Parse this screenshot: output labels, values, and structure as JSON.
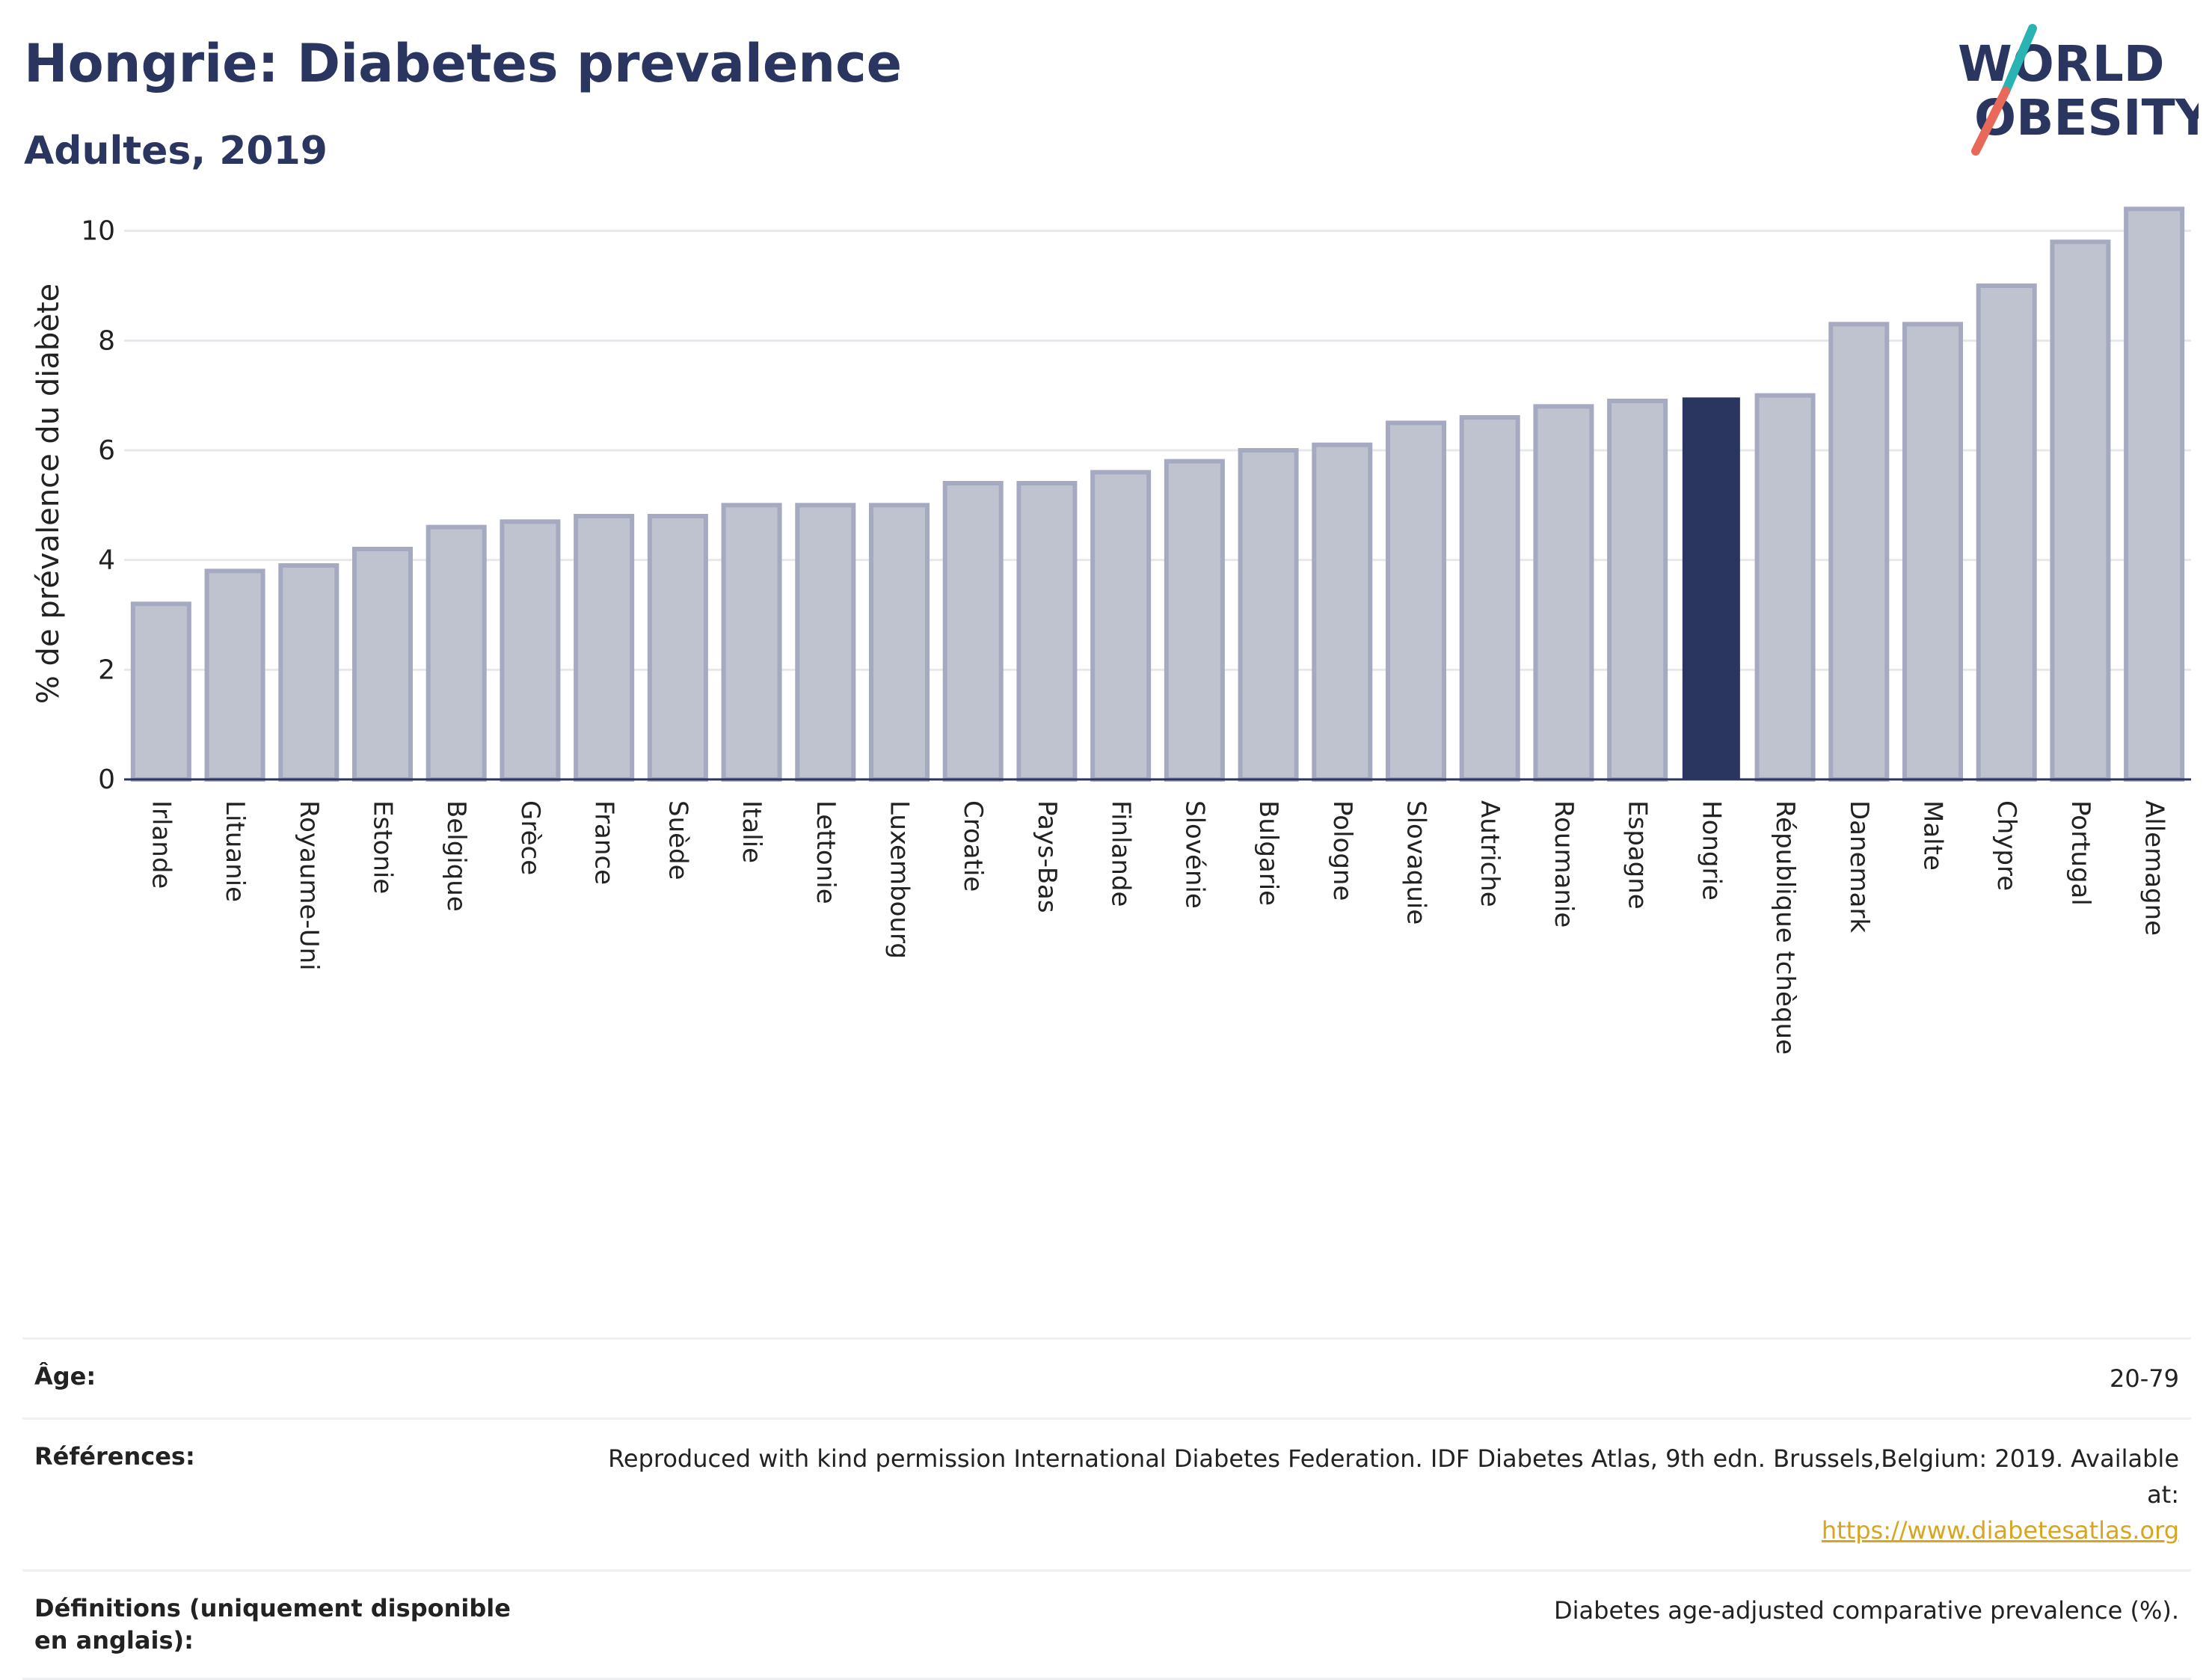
{
  "header": {
    "title": "Hongrie: Diabetes prevalence",
    "subtitle": "Adultes, 2019"
  },
  "logo": {
    "line1": "WORLD",
    "line2": "OBESITY"
  },
  "colors": {
    "bar": "#bfc2cf",
    "bar_stroke": "#a6aac1",
    "highlight": "#2a3560",
    "grid": "#e6e8ec",
    "axis": "#2a3560",
    "accent_teal": "#2ab3b3",
    "accent_red": "#e8685a",
    "link": "#d9a521"
  },
  "chart_data": {
    "type": "bar",
    "ylabel": "% de prévalence du diabète",
    "ylim": [
      0,
      10.5
    ],
    "yticks": [
      0,
      2,
      4,
      6,
      8,
      10
    ],
    "grid": true,
    "highlight": "Hongrie",
    "categories": [
      "Irlande",
      "Lituanie",
      "Royaume-Uni",
      "Estonie",
      "Belgique",
      "Grèce",
      "France",
      "Suède",
      "Italie",
      "Lettonie",
      "Luxembourg",
      "Croatie",
      "Pays-Bas",
      "Finlande",
      "Slovénie",
      "Bulgarie",
      "Pologne",
      "Slovaquie",
      "Autriche",
      "Roumanie",
      "Espagne",
      "Hongrie",
      "République tchèque",
      "Danemark",
      "Malte",
      "Chypre",
      "Portugal",
      "Allemagne"
    ],
    "values": [
      3.2,
      3.8,
      3.9,
      4.2,
      4.6,
      4.7,
      4.8,
      4.8,
      5.0,
      5.0,
      5.0,
      5.4,
      5.4,
      5.6,
      5.8,
      6.0,
      6.1,
      6.5,
      6.6,
      6.8,
      6.9,
      6.95,
      7.0,
      8.3,
      8.3,
      9.0,
      9.8,
      10.4
    ]
  },
  "info": {
    "age_label": "Âge:",
    "age_value": "20-79",
    "ref_label": "Références:",
    "ref_value": "Reproduced with kind permission International Diabetes Federation. IDF Diabetes Atlas, 9th edn. Brussels,Belgium: 2019. Available at:",
    "ref_link": "https://www.diabetesatlas.org",
    "def_label": "Définitions (uniquement disponible en anglais):",
    "def_value": "Diabetes age-adjusted comparative prevalence (%)."
  }
}
